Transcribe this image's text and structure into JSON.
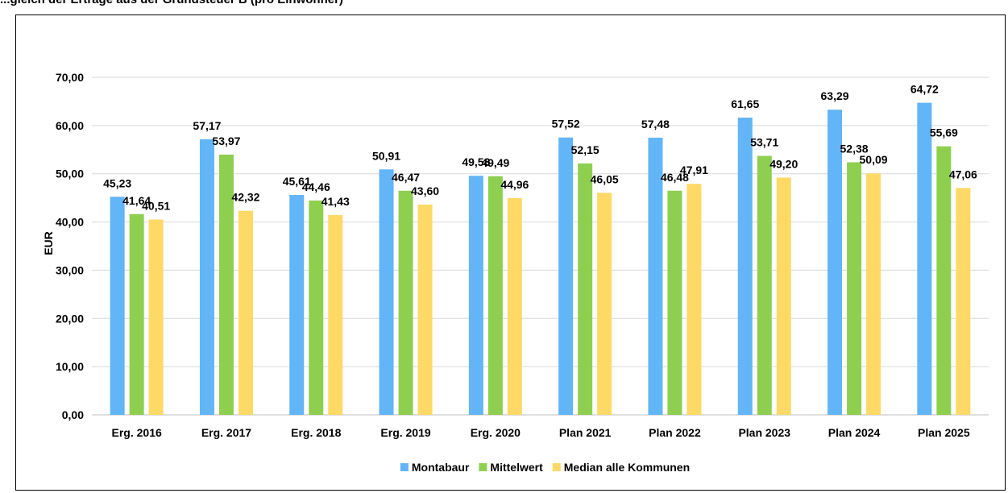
{
  "caption": "...gleich der Erträge aus der Grundsteuer B (pro Einwohner)",
  "chart_data": {
    "type": "bar",
    "categories": [
      "Erg. 2016",
      "Erg. 2017",
      "Erg. 2018",
      "Erg. 2019",
      "Erg. 2020",
      "Plan 2021",
      "Plan 2022",
      "Plan 2023",
      "Plan 2024",
      "Plan 2025"
    ],
    "series": [
      {
        "name": "Montabaur",
        "color": "#62B5F6",
        "values": [
          45.23,
          57.17,
          45.61,
          50.91,
          49.58,
          57.52,
          57.48,
          61.65,
          63.29,
          64.72
        ],
        "labels": [
          "45,23",
          "57,17",
          "45,61",
          "50,91",
          "49,58",
          "57,52",
          "57,48",
          "61,65",
          "63,29",
          "64,72"
        ]
      },
      {
        "name": "Mittelwert",
        "color": "#8ECF50",
        "values": [
          41.64,
          53.97,
          44.46,
          46.47,
          49.49,
          52.15,
          46.48,
          53.71,
          52.38,
          55.69
        ],
        "labels": [
          "41,64",
          "53,97",
          "44,46",
          "46,47",
          "49,49",
          "52,15",
          "46,48",
          "53,71",
          "52,38",
          "55,69"
        ]
      },
      {
        "name": "Median alle Kommunen",
        "color": "#FFD966",
        "values": [
          40.51,
          42.32,
          41.43,
          43.6,
          44.96,
          46.05,
          47.91,
          49.2,
          50.09,
          47.06
        ],
        "labels": [
          "40,51",
          "42,32",
          "41,43",
          "43,60",
          "44,96",
          "46,05",
          "47,91",
          "49,20",
          "50,09",
          "47,06"
        ]
      }
    ],
    "ylabel": "EUR",
    "xlabel": "",
    "ylim": [
      0,
      70
    ],
    "yticks": [
      0,
      10,
      20,
      30,
      40,
      50,
      60,
      70
    ],
    "ytick_labels": [
      "0,00",
      "10,00",
      "20,00",
      "30,00",
      "40,00",
      "50,00",
      "60,00",
      "70,00"
    ],
    "grid": true,
    "legend_position": "bottom"
  }
}
